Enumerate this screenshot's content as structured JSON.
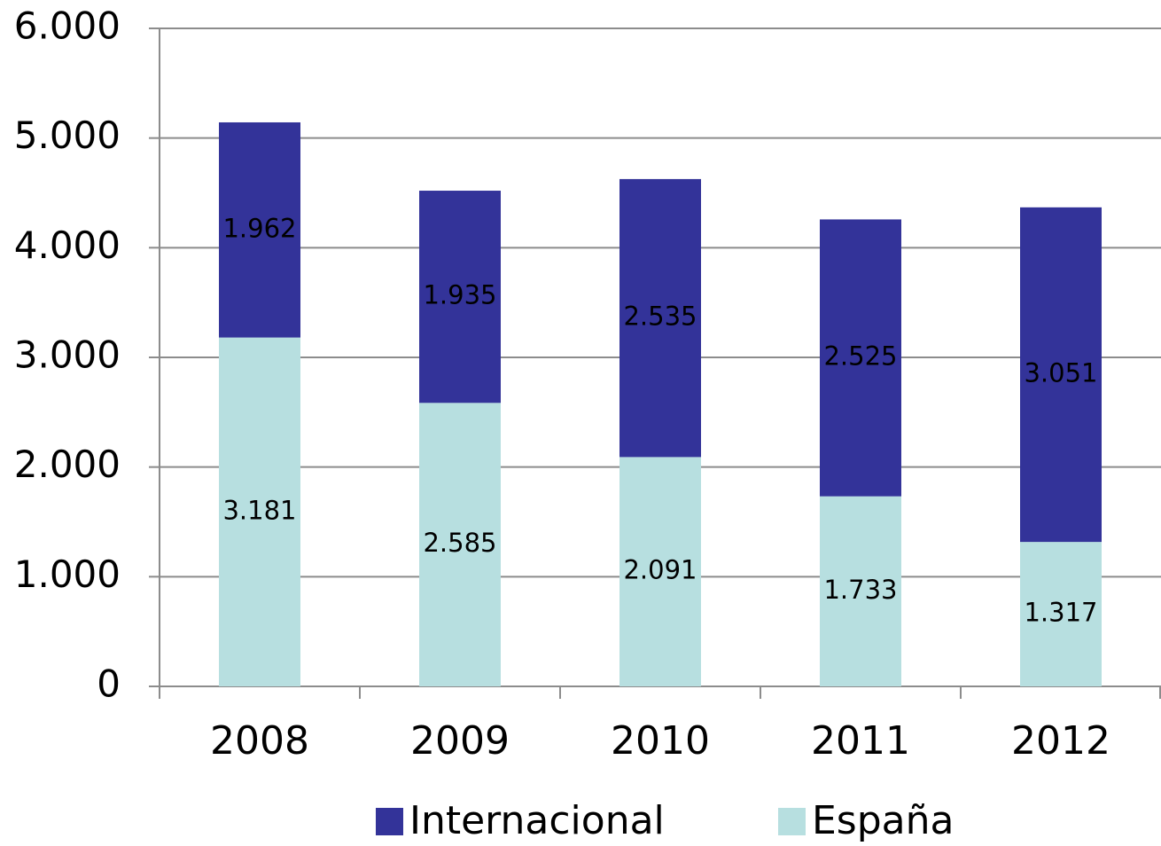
{
  "chart_data": {
    "type": "stacked_bar",
    "categories": [
      "2008",
      "2009",
      "2010",
      "2011",
      "2012"
    ],
    "series": [
      {
        "name": "Internacional",
        "color": "#333399",
        "values": [
          1962,
          1935,
          2535,
          2525,
          3051
        ],
        "value_labels": [
          "1.962",
          "1.935",
          "2.535",
          "2.525",
          "3.051"
        ]
      },
      {
        "name": "España",
        "color": "#b7dfe0",
        "values": [
          3181,
          2585,
          2091,
          1733,
          1317
        ],
        "value_labels": [
          "3.181",
          "2.585",
          "2.091",
          "1.733",
          "1.317"
        ]
      }
    ],
    "ylim": [
      0,
      6000
    ],
    "yticks": [
      0,
      {
        "value": 1000,
        "label": "1.000"
      },
      {
        "value": 2000,
        "label": "2.000"
      },
      {
        "value": 3000,
        "label": "3.000"
      },
      {
        "value": 4000,
        "label": "4.000"
      },
      {
        "value": 5000,
        "label": "5.000"
      },
      {
        "value": 6000,
        "label": "6.000"
      }
    ],
    "grid": true,
    "legend": "bottom"
  }
}
